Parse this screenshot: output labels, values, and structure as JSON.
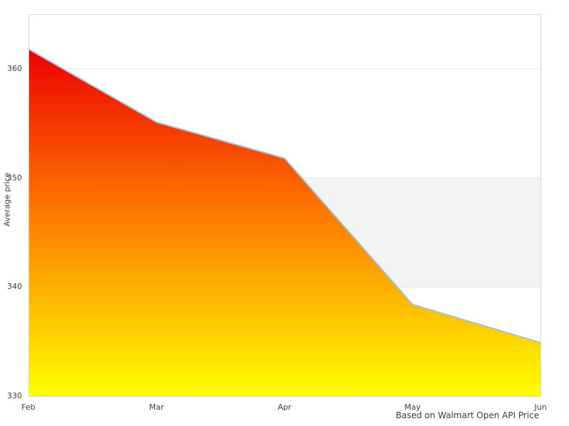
{
  "chart_data": {
    "type": "area",
    "title": "",
    "ylabel": "Average price",
    "xlabel": "",
    "categories": [
      "Feb",
      "Mar",
      "Apr",
      "May",
      "Jun"
    ],
    "series": [
      {
        "name": "Average price",
        "values": [
          361.8,
          355.1,
          351.8,
          338.4,
          334.9
        ]
      }
    ],
    "ylim": [
      330,
      365
    ],
    "yticks": [
      330,
      340,
      350,
      360
    ],
    "grid": true,
    "legend_position": "none",
    "band": {
      "from": 340,
      "to": 350,
      "color": "#f3f3f3"
    },
    "caption": "Based on Walmart Open API Price",
    "colors": {
      "gradient": [
        [
          "0%",
          "#ee0000"
        ],
        [
          "50%",
          "#ff8000"
        ],
        [
          "100%",
          "#ffff00"
        ]
      ],
      "line": "#a3c0da",
      "grid_line": "#e2e2e2",
      "plot_border": "#d8d8d8",
      "text": "#3c3c3c",
      "background": "#ffffff"
    }
  }
}
